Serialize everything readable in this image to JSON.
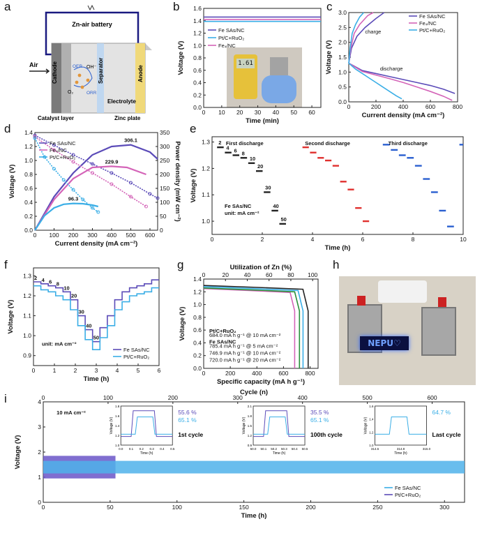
{
  "panels": {
    "a": {
      "label": "a",
      "title": "Zn-air battery",
      "air": "Air",
      "cathode": "Cathode",
      "separator": "Separator",
      "anode": "Anode",
      "electrolyte": "Electrolyte",
      "catalyst_layer": "Catalyst layer",
      "zinc_plate": "Zinc plate",
      "oer": "OER",
      "orr": "ORR",
      "oh": "OH⁻",
      "o2": "O₂"
    },
    "b": {
      "label": "b"
    },
    "c": {
      "label": "c"
    },
    "d": {
      "label": "d"
    },
    "e": {
      "label": "e"
    },
    "f": {
      "label": "f"
    },
    "g": {
      "label": "g"
    },
    "h": {
      "label": "h",
      "sign_text": "NEPU♡"
    },
    "i": {
      "label": "i"
    }
  },
  "colors": {
    "fe_sas": "#5b4bb8",
    "fe_np": "#d464b8",
    "ptc": "#3aaee6",
    "black": "#222222",
    "blue_e": "#2a5fd0",
    "red_e": "#e0302e",
    "green_g": "#2a8f3a"
  },
  "chart_data": [
    {
      "id": "b",
      "type": "line",
      "xlabel": "Time (min)",
      "ylabel": "Voltage (V)",
      "xlim": [
        0,
        65
      ],
      "ylim": [
        0.0,
        1.6
      ],
      "xticks": [
        "0",
        "10",
        "20",
        "30",
        "40",
        "50",
        "60"
      ],
      "yticks": [
        "0.0",
        "0.2",
        "0.4",
        "0.6",
        "0.8",
        "1.0",
        "1.2",
        "1.4",
        "1.6"
      ],
      "series": [
        {
          "name": "Fe SAs/NC",
          "x": [
            0,
            65
          ],
          "y": [
            1.46,
            1.46
          ]
        },
        {
          "name": "Pt/C+RuO₂",
          "x": [
            0,
            65
          ],
          "y": [
            1.39,
            1.39
          ]
        },
        {
          "name": "Fe₄/NC",
          "x": [
            0,
            65
          ],
          "y": [
            1.42,
            1.42
          ]
        }
      ],
      "inset_display": "1.61"
    },
    {
      "id": "c",
      "type": "line",
      "xlabel": "Current density (mA cm⁻²)",
      "ylabel": "Voltage (V)",
      "xlim": [
        0,
        800
      ],
      "ylim": [
        0.0,
        3.0
      ],
      "xticks": [
        "0",
        "200",
        "400",
        "600",
        "800"
      ],
      "yticks": [
        "0.0",
        "0.5",
        "1.0",
        "1.5",
        "2.0",
        "2.5",
        "3.0"
      ],
      "annotations": [
        "charge",
        "discharge"
      ],
      "series": [
        {
          "name": "Fe SAs/NC",
          "charge": {
            "x": [
              0,
              20,
              60,
              120,
              200,
              260
            ],
            "y": [
              1.3,
              1.8,
              2.2,
              2.5,
              2.8,
              3.0
            ]
          },
          "discharge": {
            "x": [
              0,
              100,
              200,
              300,
              400,
              500,
              600,
              700,
              780
            ],
            "y": [
              1.3,
              1.05,
              0.95,
              0.85,
              0.75,
              0.65,
              0.55,
              0.42,
              0.28
            ]
          }
        },
        {
          "name": "Fe₄/NC",
          "charge": {
            "x": [
              0,
              15,
              40,
              80,
              140,
              180
            ],
            "y": [
              1.3,
              1.8,
              2.3,
              2.6,
              2.9,
              3.0
            ]
          },
          "discharge": {
            "x": [
              0,
              100,
              200,
              300,
              400,
              500,
              600,
              700,
              760
            ],
            "y": [
              1.3,
              1.02,
              0.9,
              0.78,
              0.65,
              0.5,
              0.35,
              0.18,
              0.05
            ]
          }
        },
        {
          "name": "Pt/C+RuO₂",
          "charge": {
            "x": [
              0,
              10,
              25,
              50,
              80,
              110
            ],
            "y": [
              1.3,
              1.8,
              2.3,
              2.6,
              2.85,
              3.0
            ]
          },
          "discharge": {
            "x": [
              0,
              50,
              100,
              150,
              200,
              250,
              300,
              350,
              390
            ],
            "y": [
              1.3,
              1.1,
              0.95,
              0.8,
              0.65,
              0.5,
              0.35,
              0.2,
              0.1
            ]
          }
        }
      ]
    },
    {
      "id": "d",
      "type": "line",
      "xlabel": "Current density (mA cm⁻²)",
      "ylabel": "Voltage (V)",
      "y2label": "Power density (mW cm⁻²)",
      "xlim": [
        0,
        640
      ],
      "ylim": [
        0.0,
        1.4
      ],
      "y2lim": [
        0,
        350
      ],
      "xticks": [
        "0",
        "100",
        "200",
        "300",
        "400",
        "500",
        "600"
      ],
      "yticks": [
        "0.0",
        "0.2",
        "0.4",
        "0.6",
        "0.8",
        "1.0",
        "1.2",
        "1.4"
      ],
      "y2ticks": [
        "0",
        "50",
        "100",
        "150",
        "200",
        "250",
        "300",
        "350"
      ],
      "peak_labels": [
        "306.1",
        "229.9",
        "96.3"
      ],
      "series": [
        {
          "name": "Fe SAs/NC",
          "voltage": {
            "x": [
              0,
              100,
              200,
              300,
              400,
              500,
              600,
              640
            ],
            "y": [
              1.36,
              1.22,
              1.08,
              0.95,
              0.82,
              0.68,
              0.52,
              0.46
            ]
          },
          "power": {
            "x": [
              0,
              100,
              200,
              300,
              400,
              500,
              600,
              640
            ],
            "y": [
              0,
              120,
              205,
              270,
              300,
              306,
              280,
              255
            ]
          }
        },
        {
          "name": "Fe₄/NC",
          "voltage": {
            "x": [
              0,
              100,
              200,
              300,
              400,
              500,
              580
            ],
            "y": [
              1.34,
              1.15,
              0.98,
              0.82,
              0.66,
              0.48,
              0.34
            ]
          },
          "power": {
            "x": [
              0,
              100,
              200,
              300,
              400,
              480,
              580
            ],
            "y": [
              0,
              110,
              185,
              225,
              229,
              225,
              200
            ]
          }
        },
        {
          "name": "Pt/C+RuO₂",
          "voltage": {
            "x": [
              0,
              50,
              100,
              150,
              200,
              250,
              300,
              330
            ],
            "y": [
              1.32,
              1.05,
              0.88,
              0.72,
              0.58,
              0.44,
              0.32,
              0.26
            ]
          },
          "power": {
            "x": [
              0,
              50,
              100,
              150,
              200,
              250,
              300,
              330
            ],
            "y": [
              0,
              52,
              80,
              93,
              96,
              95,
              90,
              85
            ]
          }
        }
      ]
    },
    {
      "id": "e",
      "type": "line",
      "xlabel": "Time (h)",
      "ylabel": "Voltage (V)",
      "xlim": [
        0,
        10
      ],
      "ylim": [
        0.95,
        1.32
      ],
      "xticks": [
        "0",
        "2",
        "4",
        "6",
        "8",
        "10"
      ],
      "yticks": [
        "1.0",
        "1.1",
        "1.2",
        "1.3"
      ],
      "section_titles": [
        "First discharge",
        "Second discharge",
        "Third discharge"
      ],
      "current_labels": [
        "2",
        "4",
        "6",
        "8",
        "10",
        "20",
        "30",
        "40",
        "50"
      ],
      "legend_text": [
        "Fe SAs/NC",
        "unit: mA cm⁻²"
      ],
      "first": [
        1.28,
        1.26,
        1.25,
        1.24,
        1.22,
        1.19,
        1.11,
        1.04,
        0.99
      ],
      "second": [
        1.28,
        1.26,
        1.24,
        1.23,
        1.21,
        1.15,
        1.12,
        1.05,
        1.0
      ],
      "third": [
        1.29,
        1.27,
        1.25,
        1.24,
        1.21,
        1.16,
        1.11,
        1.04,
        0.98
      ],
      "tail_value": 1.29
    },
    {
      "id": "f",
      "type": "line",
      "xlabel": "Time (h)",
      "ylabel": "Voltage (V)",
      "xlim": [
        0,
        6
      ],
      "ylim": [
        0.85,
        1.34
      ],
      "xticks": [
        "0",
        "1",
        "2",
        "3",
        "4",
        "5",
        "6"
      ],
      "yticks": [
        "0.9",
        "1.0",
        "1.1",
        "1.2",
        "1.3"
      ],
      "current_labels": [
        "2",
        "4",
        "6",
        "8",
        "10",
        "20",
        "30",
        "40",
        "50"
      ],
      "unit_text": "unit: mA cm⁻²",
      "series": [
        {
          "name": "Fe SAs/NC",
          "steps": [
            1.27,
            1.26,
            1.25,
            1.24,
            1.22,
            1.18,
            1.1,
            1.03,
            0.97,
            1.04,
            1.1,
            1.18,
            1.22,
            1.24,
            1.25,
            1.26,
            1.28
          ]
        },
        {
          "name": "Pt/C+RuO₂",
          "steps": [
            1.25,
            1.23,
            1.22,
            1.2,
            1.18,
            1.13,
            1.05,
            0.98,
            0.93,
            0.99,
            1.05,
            1.13,
            1.17,
            1.2,
            1.21,
            1.22,
            1.24
          ]
        }
      ]
    },
    {
      "id": "g",
      "type": "line",
      "xlabel": "Specific capacity (mA h g⁻¹)",
      "ylabel": "Voltage (V)",
      "x2label": "Utilization of Zn (%)",
      "xlim": [
        0,
        860
      ],
      "ylim": [
        0.0,
        1.4
      ],
      "x2lim": [
        0,
        105
      ],
      "xticks": [
        "0",
        "200",
        "400",
        "600",
        "800"
      ],
      "yticks": [
        "0.0",
        "0.2",
        "0.4",
        "0.6",
        "0.8",
        "1.0",
        "1.2",
        "1.4"
      ],
      "x2ticks": [
        "0",
        "20",
        "40",
        "60",
        "80",
        "100"
      ],
      "legend_heads": [
        "Pt/C+RuO₂",
        "Fe SAs/NC"
      ],
      "series": [
        {
          "name": "684.0 mA h g⁻¹ @ 10 mA cm⁻²",
          "capacity": 684.0,
          "plateau": 1.22
        },
        {
          "name": "785.4 mA h g⁻¹ @ 5 mA cm⁻²",
          "capacity": 785.4,
          "plateau": 1.27
        },
        {
          "name": "746.9 mA h g⁻¹ @ 10 mA cm⁻²",
          "capacity": 746.9,
          "plateau": 1.25
        },
        {
          "name": "720.0 mA h g⁻¹ @ 20 mA cm⁻²",
          "capacity": 720.0,
          "plateau": 1.23
        }
      ]
    },
    {
      "id": "i",
      "type": "line",
      "xlabel": "Time (h)",
      "ylabel": "Voltage (V)",
      "x2label": "Cycle (n)",
      "xlim": [
        0,
        315
      ],
      "ylim": [
        0,
        4
      ],
      "x2lim": [
        0,
        650
      ],
      "xticks": [
        "0",
        "50",
        "100",
        "150",
        "200",
        "250",
        "300"
      ],
      "yticks": [
        "0",
        "1",
        "2",
        "3",
        "4"
      ],
      "x2ticks": [
        "0",
        "100",
        "200",
        "300",
        "400",
        "500",
        "600"
      ],
      "current_text": "10 mA cm⁻²",
      "series": [
        {
          "name": "Fe SAs/NC",
          "band": [
            1.15,
            1.65
          ],
          "until": 315
        },
        {
          "name": "Pt/C+RuO₂",
          "band": [
            0.95,
            1.85
          ],
          "until": 54
        }
      ],
      "insets": [
        {
          "caption": "1st cycle",
          "eff": [
            "55.6 %",
            "65.1 %"
          ],
          "xticks": [
            "0.0",
            "0.1",
            "0.2",
            "0.3",
            "0.4",
            "0.5"
          ],
          "yticks": [
            "1.0",
            "1.2",
            "1.4",
            "1.6",
            "1.8"
          ]
        },
        {
          "caption": "100th cycle",
          "eff": [
            "35.5 %",
            "65.1 %"
          ],
          "xticks": [
            "50.0",
            "50.1",
            "50.2",
            "50.3",
            "50.4",
            "50.5"
          ],
          "yticks": [
            "0.9",
            "1.2",
            "1.5",
            "1.8",
            "2.1"
          ]
        },
        {
          "caption": "Last cycle",
          "eff": [
            "64.7 %"
          ],
          "xticks": [
            "314.6",
            "314.8",
            "315.0"
          ],
          "yticks": [
            "1.0",
            "1.2",
            "1.4",
            "1.6"
          ]
        }
      ],
      "inset_xlabel": "Time (h)",
      "inset_ylabel": "Voltage (V)"
    }
  ]
}
